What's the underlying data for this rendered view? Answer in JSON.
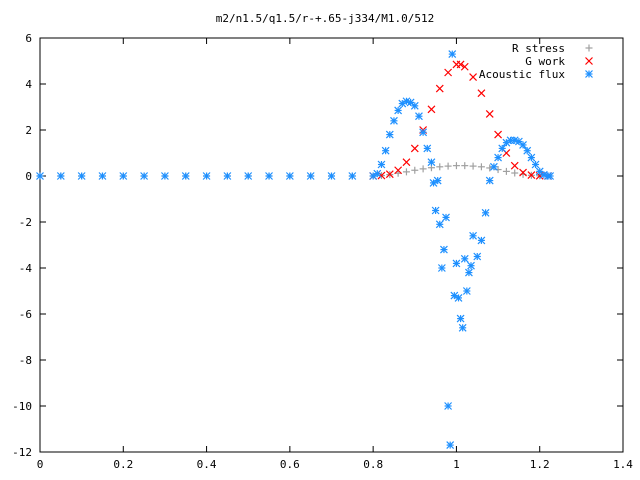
{
  "chart_data": {
    "type": "scatter",
    "title": "m2/n1.5/q1.5/r-+.65-j334/M1.0/512",
    "xlabel": "",
    "ylabel": "",
    "xlim": [
      0,
      1.4
    ],
    "ylim": [
      -12,
      6
    ],
    "xticks": [
      "0",
      "0.2",
      "0.4",
      "0.6",
      "0.8",
      "1",
      "1.2",
      "1.4"
    ],
    "yticks": [
      "6",
      "4",
      "2",
      "0",
      "-2",
      "-4",
      "-6",
      "-8",
      "-10",
      "-12"
    ],
    "legend_position": "top-right",
    "grid": false,
    "series": [
      {
        "name": "R stress",
        "marker": "plus",
        "color": "#a0a0a0",
        "x": [
          0.0,
          0.05,
          0.1,
          0.15,
          0.2,
          0.25,
          0.3,
          0.35,
          0.4,
          0.45,
          0.5,
          0.55,
          0.6,
          0.65,
          0.7,
          0.75,
          0.8,
          0.82,
          0.84,
          0.86,
          0.88,
          0.9,
          0.92,
          0.94,
          0.96,
          0.98,
          1.0,
          1.02,
          1.04,
          1.06,
          1.08,
          1.1,
          1.12,
          1.14,
          1.16,
          1.18,
          1.2,
          1.22
        ],
        "y": [
          0,
          0,
          0,
          0,
          0,
          0,
          0,
          0,
          0,
          0,
          0,
          0,
          0,
          0,
          0,
          0,
          0.0,
          0.02,
          0.06,
          0.12,
          0.18,
          0.25,
          0.31,
          0.36,
          0.4,
          0.43,
          0.45,
          0.45,
          0.43,
          0.4,
          0.35,
          0.28,
          0.2,
          0.13,
          0.07,
          0.03,
          0.01,
          0.0
        ]
      },
      {
        "name": "G work",
        "marker": "cross",
        "color": "#ff0000",
        "x": [
          0.8,
          0.82,
          0.84,
          0.86,
          0.88,
          0.9,
          0.92,
          0.94,
          0.96,
          0.98,
          1.0,
          1.01,
          1.02,
          1.04,
          1.06,
          1.08,
          1.1,
          1.12,
          1.14,
          1.16,
          1.18,
          1.2,
          1.22
        ],
        "y": [
          0.0,
          0.02,
          0.08,
          0.25,
          0.6,
          1.2,
          2.0,
          2.9,
          3.8,
          4.5,
          4.85,
          4.85,
          4.75,
          4.3,
          3.6,
          2.7,
          1.8,
          1.0,
          0.45,
          0.15,
          0.04,
          0.01,
          0.0
        ]
      },
      {
        "name": "Acoustic flux",
        "marker": "star",
        "color": "#1e90ff",
        "x": [
          0.0,
          0.05,
          0.1,
          0.15,
          0.2,
          0.25,
          0.3,
          0.35,
          0.4,
          0.45,
          0.5,
          0.55,
          0.6,
          0.65,
          0.7,
          0.75,
          0.8,
          0.81,
          0.82,
          0.83,
          0.84,
          0.85,
          0.86,
          0.87,
          0.88,
          0.89,
          0.9,
          0.91,
          0.92,
          0.93,
          0.94,
          0.945,
          0.95,
          0.955,
          0.96,
          0.965,
          0.97,
          0.975,
          0.98,
          0.985,
          0.99,
          0.995,
          1.0,
          1.005,
          1.01,
          1.015,
          1.02,
          1.025,
          1.03,
          1.035,
          1.04,
          1.05,
          1.06,
          1.07,
          1.08,
          1.09,
          1.1,
          1.11,
          1.12,
          1.13,
          1.14,
          1.15,
          1.16,
          1.17,
          1.18,
          1.19,
          1.2,
          1.21,
          1.22,
          1.225
        ],
        "y": [
          0,
          0,
          0,
          0,
          0,
          0,
          0,
          0,
          0,
          0,
          0,
          0,
          0,
          0,
          0,
          0,
          0.0,
          0.1,
          0.5,
          1.1,
          1.8,
          2.4,
          2.85,
          3.15,
          3.25,
          3.2,
          3.05,
          2.6,
          1.9,
          1.2,
          0.6,
          -0.3,
          -1.5,
          -0.2,
          -2.1,
          -4.0,
          -3.2,
          -1.8,
          -10.0,
          -11.7,
          5.3,
          -5.2,
          -3.8,
          -5.3,
          -6.2,
          -6.6,
          -3.6,
          -5.0,
          -4.2,
          -3.9,
          -2.6,
          -3.5,
          -2.8,
          -1.6,
          -0.2,
          0.4,
          0.8,
          1.2,
          1.45,
          1.55,
          1.55,
          1.5,
          1.35,
          1.1,
          0.8,
          0.5,
          0.2,
          0.05,
          0.0,
          0.0
        ]
      }
    ]
  }
}
